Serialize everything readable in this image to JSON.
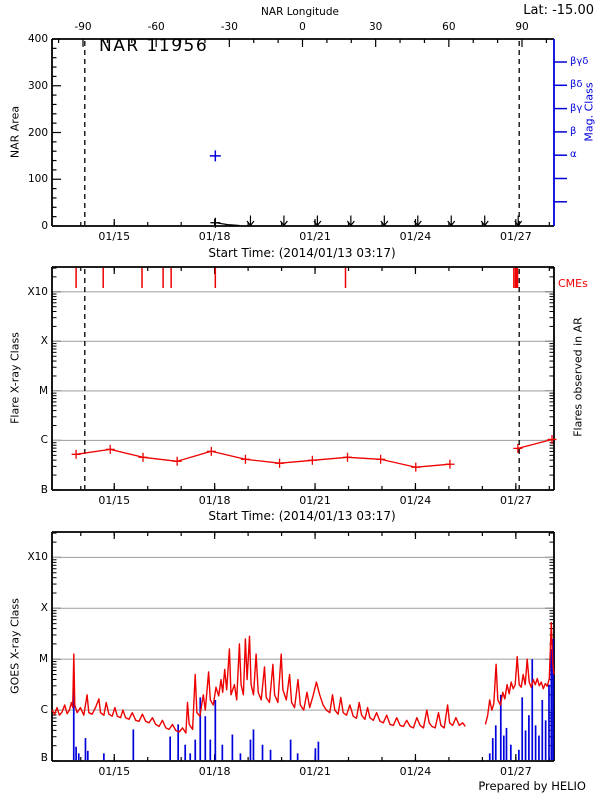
{
  "colors": {
    "red": "#ee0000",
    "blue": "#0000dd",
    "grid": "#a8a8a8",
    "axis": "#000000",
    "background": "#ffffff"
  },
  "time_axis": {
    "xlabel": "Start Time: (2014/01/13 03:17)",
    "span_days": 15,
    "major_tick_labels": [
      "01/15",
      "01/18",
      "01/21",
      "01/24",
      "01/27"
    ],
    "major_tick_days": [
      1.86,
      4.86,
      7.86,
      10.86,
      13.86
    ],
    "minor_tick_step_days": 1
  },
  "chart_data": [
    {
      "id": "nar_area",
      "type": "scatter",
      "title_inside": "NAR 11956",
      "lat_label": "Lat: -15.00",
      "top_axis": {
        "title": "NAR Longitude",
        "ticks": [
          -90,
          -60,
          -30,
          0,
          30,
          60,
          90
        ],
        "minor_step": 10
      },
      "ylabel": "NAR Area",
      "ylim": [
        0,
        400
      ],
      "yticks": [
        0,
        100,
        200,
        300,
        400
      ],
      "y_minor_step": 20,
      "right_axis": {
        "title": "Mag. Class",
        "labels": [
          "βγδ",
          "βδ",
          "βγ",
          "β",
          "α"
        ],
        "n_ticks": 7
      },
      "xlabel": "Start Time: (2014/01/13 03:17)",
      "area_point_blue": {
        "t": 4.88,
        "area": 150
      },
      "area_points_black": [
        [
          4.88,
          7
        ],
        [
          5.25,
          3
        ],
        [
          5.6,
          1
        ]
      ],
      "upper_limit_arrow_days": [
        5.93,
        6.93,
        7.93,
        8.93,
        9.93,
        10.93,
        11.93,
        12.93,
        13.93
      ],
      "limb_dashed_lines_days": [
        0.98,
        13.96
      ]
    },
    {
      "id": "flares_in_ar",
      "type": "line",
      "ylabel": "Flare X-ray Class",
      "class_labels": [
        "B",
        "C",
        "M",
        "X",
        "X10"
      ],
      "y_scale": "log decades above B (B=0, C=1, M=2, X=3, X10=4)",
      "ylim_decades": [
        0,
        4.5
      ],
      "right_label": "Flares observed in AR",
      "cme_label": "CMEs",
      "xlabel": "Start Time: (2014/01/13 03:17)",
      "cme_tick_days": [
        [
          0.72,
          1.5
        ],
        [
          1.53,
          1.5
        ],
        [
          2.69,
          1.5
        ],
        [
          3.32,
          1.5
        ],
        [
          3.56,
          1.5
        ],
        [
          4.88,
          1.5
        ],
        [
          8.77,
          1.5
        ],
        [
          13.8,
          1.5
        ],
        [
          13.88,
          3.5
        ]
      ],
      "flare_segments": [
        [
          [
            0.72,
            0.72
          ],
          [
            1.74,
            0.82
          ],
          [
            2.72,
            0.66
          ],
          [
            3.74,
            0.58
          ],
          [
            4.76,
            0.78
          ],
          [
            5.78,
            0.62
          ],
          [
            6.8,
            0.54
          ],
          [
            7.78,
            0.6
          ],
          [
            8.83,
            0.66
          ],
          [
            9.82,
            0.62
          ],
          [
            10.87,
            0.46
          ],
          [
            11.89,
            0.52
          ]
        ],
        [
          [
            13.92,
            0.84
          ],
          [
            14.94,
            1.02
          ]
        ]
      ],
      "limb_dashed_lines_days": [
        0.98,
        13.96
      ]
    },
    {
      "id": "goes_xray",
      "type": "line",
      "ylabel": "GOES X-ray Class",
      "class_labels": [
        "B",
        "C",
        "M",
        "X",
        "X10"
      ],
      "y_scale": "log decades above B (B=0, C=1, M=2, X=3, X10=4)",
      "ylim_decades": [
        0,
        4.5
      ],
      "credit": "Prepared by HELIO",
      "red_segments": [
        [
          [
            0,
            1
          ],
          [
            0.08,
            0.92
          ],
          [
            0.15,
            1.05
          ],
          [
            0.22,
            0.9
          ],
          [
            0.3,
            0.96
          ],
          [
            0.38,
            1.1
          ],
          [
            0.45,
            0.93
          ],
          [
            0.52,
            1
          ],
          [
            0.58,
            1.15
          ],
          [
            0.62,
            1.05
          ],
          [
            0.65,
            2.1
          ],
          [
            0.68,
            1.1
          ],
          [
            0.75,
            0.95
          ],
          [
            0.85,
            1.05
          ],
          [
            0.95,
            0.9
          ],
          [
            1.05,
            1.3
          ],
          [
            1.1,
            0.95
          ],
          [
            1.2,
            0.92
          ],
          [
            1.3,
            1.05
          ],
          [
            1.4,
            1.22
          ],
          [
            1.45,
            0.95
          ],
          [
            1.55,
            0.9
          ],
          [
            1.62,
            1.15
          ],
          [
            1.7,
            0.92
          ],
          [
            1.8,
            0.88
          ],
          [
            1.88,
            1.05
          ],
          [
            1.95,
            0.88
          ],
          [
            2.05,
            0.85
          ],
          [
            2.12,
            1
          ],
          [
            2.2,
            0.85
          ],
          [
            2.3,
            0.82
          ],
          [
            2.4,
            0.95
          ],
          [
            2.5,
            0.8
          ],
          [
            2.6,
            0.78
          ],
          [
            2.7,
            0.92
          ],
          [
            2.8,
            0.78
          ],
          [
            2.9,
            0.75
          ],
          [
            3,
            0.85
          ],
          [
            3.1,
            0.72
          ],
          [
            3.2,
            0.68
          ],
          [
            3.3,
            0.8
          ],
          [
            3.4,
            0.65
          ],
          [
            3.5,
            0.62
          ],
          [
            3.6,
            0.72
          ],
          [
            3.7,
            0.6
          ],
          [
            3.8,
            0.57
          ],
          [
            3.9,
            0.65
          ],
          [
            4,
            0.55
          ],
          [
            4.05,
            1.15
          ],
          [
            4.1,
            0.72
          ],
          [
            4.2,
            0.62
          ],
          [
            4.28,
            1.7
          ],
          [
            4.33,
            0.95
          ],
          [
            4.42,
            0.88
          ],
          [
            4.52,
            1.3
          ],
          [
            4.58,
            1
          ],
          [
            4.68,
            1.75
          ],
          [
            4.73,
            1.2
          ],
          [
            4.82,
            1.1
          ],
          [
            4.9,
            1.45
          ],
          [
            4.98,
            1.28
          ],
          [
            5.05,
            1.6
          ],
          [
            5.1,
            1.35
          ],
          [
            5.16,
            1.8
          ],
          [
            5.22,
            1.4
          ],
          [
            5.3,
            2.2
          ],
          [
            5.35,
            1.3
          ],
          [
            5.45,
            1.5
          ],
          [
            5.52,
            1.2
          ],
          [
            5.6,
            2.3
          ],
          [
            5.65,
            1.5
          ],
          [
            5.72,
            1.3
          ],
          [
            5.78,
            2.4
          ],
          [
            5.83,
            1.6
          ],
          [
            5.9,
            2.45
          ],
          [
            5.95,
            1.5
          ],
          [
            6.02,
            1.3
          ],
          [
            6.1,
            2.1
          ],
          [
            6.16,
            1.35
          ],
          [
            6.25,
            1.2
          ],
          [
            6.35,
            1.85
          ],
          [
            6.4,
            1.25
          ],
          [
            6.5,
            1.15
          ],
          [
            6.6,
            1.9
          ],
          [
            6.65,
            1.3
          ],
          [
            6.75,
            1.15
          ],
          [
            6.85,
            2.1
          ],
          [
            6.9,
            1.4
          ],
          [
            7,
            1.2
          ],
          [
            7.1,
            1.7
          ],
          [
            7.16,
            1.15
          ],
          [
            7.25,
            1.05
          ],
          [
            7.35,
            1.6
          ],
          [
            7.42,
            1.1
          ],
          [
            7.52,
            1
          ],
          [
            7.62,
            1.35
          ],
          [
            7.7,
            1.05
          ],
          [
            7.8,
            1.28
          ],
          [
            7.9,
            1.55
          ],
          [
            8,
            1.3
          ],
          [
            8.1,
            1.1
          ],
          [
            8.2,
            1
          ],
          [
            8.3,
            0.95
          ],
          [
            8.38,
            1.3
          ],
          [
            8.45,
            1
          ],
          [
            8.55,
            0.92
          ],
          [
            8.63,
            1.25
          ],
          [
            8.7,
            0.95
          ],
          [
            8.8,
            0.9
          ],
          [
            8.9,
            1.1
          ],
          [
            9,
            0.88
          ],
          [
            9.1,
            0.84
          ],
          [
            9.18,
            1.15
          ],
          [
            9.25,
            0.9
          ],
          [
            9.35,
            0.82
          ],
          [
            9.43,
            1.05
          ],
          [
            9.5,
            0.85
          ],
          [
            9.6,
            0.8
          ],
          [
            9.7,
            0.95
          ],
          [
            9.8,
            0.78
          ],
          [
            9.9,
            0.75
          ],
          [
            10,
            0.9
          ],
          [
            10.1,
            0.72
          ],
          [
            10.2,
            0.7
          ],
          [
            10.3,
            0.85
          ],
          [
            10.4,
            0.7
          ],
          [
            10.5,
            0.68
          ],
          [
            10.6,
            0.8
          ],
          [
            10.7,
            0.68
          ],
          [
            10.8,
            0.65
          ],
          [
            10.9,
            0.85
          ],
          [
            11,
            0.7
          ],
          [
            11.1,
            0.65
          ],
          [
            11.2,
            1
          ],
          [
            11.27,
            0.75
          ],
          [
            11.35,
            0.68
          ],
          [
            11.45,
            0.65
          ],
          [
            11.55,
            0.95
          ],
          [
            11.62,
            0.7
          ],
          [
            11.72,
            0.65
          ],
          [
            11.82,
            1.1
          ],
          [
            11.88,
            0.75
          ],
          [
            11.97,
            0.7
          ],
          [
            12.07,
            0.85
          ],
          [
            12.17,
            0.7
          ],
          [
            12.27,
            0.75
          ],
          [
            12.35,
            0.68
          ]
        ],
        [
          [
            12.95,
            0.72
          ],
          [
            13.02,
            0.9
          ],
          [
            13.08,
            1.2
          ],
          [
            13.14,
            1
          ],
          [
            13.2,
            1.12
          ],
          [
            13.27,
            1.9
          ],
          [
            13.32,
            1.2
          ],
          [
            13.4,
            1.1
          ],
          [
            13.47,
            1.35
          ],
          [
            13.53,
            1.22
          ],
          [
            13.6,
            1.5
          ],
          [
            13.66,
            1.32
          ],
          [
            13.72,
            1.55
          ],
          [
            13.78,
            1.42
          ],
          [
            13.84,
            1.5
          ],
          [
            13.9,
            2.05
          ],
          [
            13.96,
            1.5
          ],
          [
            14.02,
            1.45
          ],
          [
            14.08,
            1.7
          ],
          [
            14.14,
            1.5
          ],
          [
            14.2,
            2
          ],
          [
            14.26,
            1.55
          ],
          [
            14.32,
            1.45
          ],
          [
            14.38,
            1.6
          ],
          [
            14.44,
            1.5
          ],
          [
            14.5,
            1.62
          ],
          [
            14.56,
            1.48
          ],
          [
            14.62,
            1.55
          ],
          [
            14.68,
            1.42
          ],
          [
            14.74,
            1.52
          ],
          [
            14.8,
            1.47
          ],
          [
            14.86,
            1.62
          ],
          [
            14.92,
            2.72
          ],
          [
            14.96,
            1.95
          ],
          [
            15,
            1.7
          ]
        ]
      ],
      "blue_spikes": [
        [
          0.65,
          1.55
        ],
        [
          0.72,
          0.28
        ],
        [
          0.8,
          0.15
        ],
        [
          1,
          0.45
        ],
        [
          1.07,
          0.2
        ],
        [
          1.55,
          0.15
        ],
        [
          2.43,
          0.62
        ],
        [
          3.53,
          0.48
        ],
        [
          3.77,
          0.72
        ],
        [
          3.98,
          0.32
        ],
        [
          4.13,
          0.15
        ],
        [
          4.28,
          0.42
        ],
        [
          4.43,
          1.25
        ],
        [
          4.58,
          0.88
        ],
        [
          4.73,
          0.42
        ],
        [
          4.88,
          1.2
        ],
        [
          5.09,
          0.32
        ],
        [
          5.39,
          0.52
        ],
        [
          5.63,
          0.15
        ],
        [
          5.93,
          0.42
        ],
        [
          6.02,
          0.62
        ],
        [
          6.29,
          0.32
        ],
        [
          6.53,
          0.22
        ],
        [
          7.13,
          0.42
        ],
        [
          7.34,
          0.15
        ],
        [
          7.87,
          0.25
        ],
        [
          7.96,
          0.38
        ],
        [
          13.08,
          0.15
        ],
        [
          13.17,
          0.45
        ],
        [
          13.26,
          0.7
        ],
        [
          13.41,
          1.3
        ],
        [
          13.5,
          0.5
        ],
        [
          13.58,
          0.65
        ],
        [
          13.71,
          0.32
        ],
        [
          13.95,
          0.22
        ],
        [
          14.05,
          1.25
        ],
        [
          14.15,
          0.6
        ],
        [
          14.25,
          0.9
        ],
        [
          14.35,
          2
        ],
        [
          14.45,
          0.7
        ],
        [
          14.55,
          0.5
        ],
        [
          14.65,
          1.2
        ],
        [
          14.75,
          0.8
        ],
        [
          14.85,
          1.5
        ],
        [
          14.92,
          2.2
        ],
        [
          14.97,
          2.4
        ]
      ]
    }
  ]
}
